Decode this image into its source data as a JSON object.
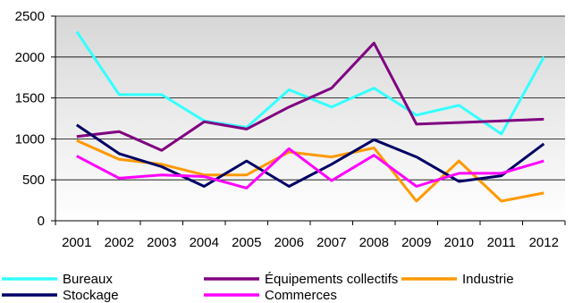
{
  "chart_data": {
    "type": "line",
    "title": "",
    "xlabel": "",
    "ylabel": "",
    "x": [
      "2001",
      "2002",
      "2003",
      "2004",
      "2005",
      "2006",
      "2007",
      "2008",
      "2009",
      "2010",
      "2011",
      "2012"
    ],
    "ylim": [
      0,
      2500
    ],
    "yticks": [
      "0",
      "500",
      "1000",
      "1500",
      "2000",
      "2500"
    ],
    "grid": true,
    "legend_position": "bottom",
    "series": [
      {
        "name": "Bureaux",
        "color": "#33ffff",
        "values": [
          2310,
          1540,
          1540,
          1220,
          1140,
          1600,
          1390,
          1620,
          1290,
          1410,
          1060,
          2000
        ]
      },
      {
        "name": "Équipements collectifs",
        "color": "#800080",
        "values": [
          1030,
          1090,
          860,
          1210,
          1120,
          1390,
          1620,
          2170,
          1180,
          1200,
          1220,
          1240
        ]
      },
      {
        "name": "Industrie",
        "color": "#ff9900",
        "values": [
          980,
          750,
          690,
          560,
          560,
          840,
          780,
          890,
          240,
          730,
          240,
          340
        ]
      },
      {
        "name": "Stockage",
        "color": "#000066",
        "values": [
          1170,
          820,
          660,
          420,
          730,
          420,
          690,
          990,
          780,
          480,
          550,
          940
        ]
      },
      {
        "name": "Commerces",
        "color": "#ff00ff",
        "values": [
          790,
          520,
          560,
          540,
          400,
          880,
          490,
          800,
          420,
          580,
          580,
          730
        ]
      }
    ]
  }
}
